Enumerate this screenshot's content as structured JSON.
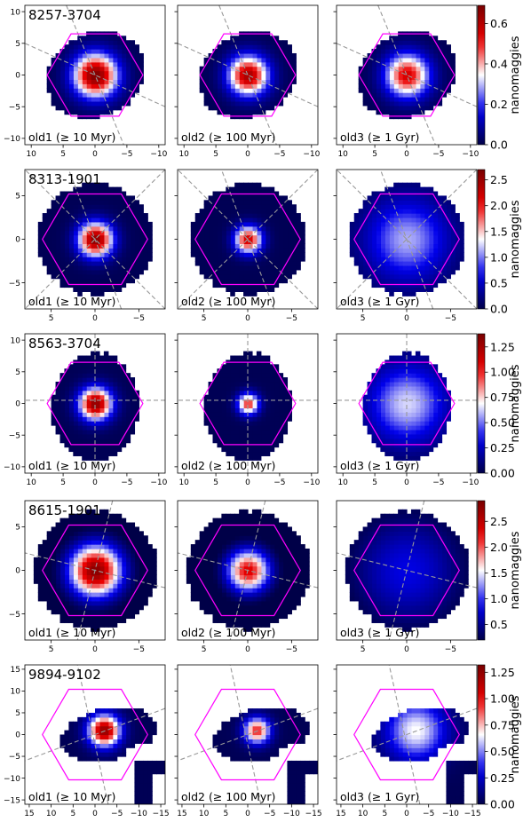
{
  "figure": {
    "rows": [
      {
        "galaxy": "8257-3704",
        "panels": [
          {
            "label": "old1 (≥ 10 Myr)",
            "peak": 0.68
          },
          {
            "label": "old2 (≥ 100 Myr)",
            "peak": 0.62
          },
          {
            "label": "old3 (≥ 1 Gyr)",
            "peak": 0.55
          }
        ],
        "ytick_labels": [
          "10",
          "5",
          "0",
          "−5",
          "−10"
        ],
        "ytick_values": [
          10,
          5,
          0,
          -5,
          -10
        ],
        "xtick_labels": [
          "10",
          "5",
          "0",
          "−5",
          "−10"
        ],
        "xtick_values": [
          10,
          5,
          0,
          -5,
          -10
        ],
        "axis_range": [
          -11,
          11
        ],
        "hexagon_radius": 7.5,
        "colorbar": {
          "label": "nanomaggies",
          "ticks": [
            "0.0",
            "0.2",
            "0.4",
            "0.6"
          ],
          "tick_values": [
            0.0,
            0.2,
            0.4,
            0.6
          ],
          "range": [
            0,
            0.69
          ]
        }
      },
      {
        "galaxy": "8313-1901",
        "panels": [
          {
            "label": "old1 (≥ 10 Myr)",
            "peak": 2.6
          },
          {
            "label": "old2 (≥ 100 Myr)",
            "peak": 2.2
          },
          {
            "label": "old3 (≥ 1 Gyr)",
            "peak": 1.1
          }
        ],
        "ytick_labels": [
          "5",
          "0",
          "−5"
        ],
        "ytick_values": [
          5,
          0,
          -5
        ],
        "xtick_labels": [
          "5",
          "0",
          "−5"
        ],
        "xtick_values": [
          5,
          0,
          -5
        ],
        "axis_range": [
          -8,
          8
        ],
        "hexagon_radius": 6,
        "colorbar": {
          "label": "nanomaggies",
          "ticks": [
            "0.0",
            "0.5",
            "1.0",
            "1.5",
            "2.0",
            "2.5"
          ],
          "tick_values": [
            0,
            0.5,
            1.0,
            1.5,
            2.0,
            2.5
          ],
          "range": [
            0,
            2.7
          ]
        }
      },
      {
        "galaxy": "8563-3704",
        "panels": [
          {
            "label": "old1 (≥ 10 Myr)",
            "peak": 1.32
          },
          {
            "label": "old2 (≥ 100 Myr)",
            "peak": 1.0
          },
          {
            "label": "old3 (≥ 1 Gyr)",
            "peak": 0.62
          }
        ],
        "ytick_labels": [
          "10",
          "5",
          "0",
          "−5",
          "−10"
        ],
        "ytick_values": [
          10,
          5,
          0,
          -5,
          -10
        ],
        "xtick_labels": [
          "10",
          "5",
          "0",
          "−5",
          "−10"
        ],
        "xtick_values": [
          10,
          5,
          0,
          -5,
          -10
        ],
        "axis_range": [
          -11,
          11
        ],
        "hexagon_radius": 7.5,
        "colorbar": {
          "label": "nanomaggies",
          "ticks": [
            "0.00",
            "0.25",
            "0.50",
            "0.75",
            "1.00",
            "1.25"
          ],
          "tick_values": [
            0,
            0.25,
            0.5,
            0.75,
            1.0,
            1.25
          ],
          "range": [
            0,
            1.38
          ]
        }
      },
      {
        "galaxy": "8615-1901",
        "panels": [
          {
            "label": "old1 (≥ 10 Myr)",
            "peak": 2.8
          },
          {
            "label": "old2 (≥ 100 Myr)",
            "peak": 2.3
          },
          {
            "label": "old3 (≥ 1 Gyr)",
            "peak": 0.8
          }
        ],
        "ytick_labels": [
          "5",
          "0",
          "−5"
        ],
        "ytick_values": [
          5,
          0,
          -5
        ],
        "xtick_labels": [
          "5",
          "0",
          "−5"
        ],
        "xtick_values": [
          5,
          0,
          -5
        ],
        "axis_range": [
          -8,
          8
        ],
        "hexagon_radius": 6,
        "colorbar": {
          "label": "nanomaggies",
          "ticks": [
            "0.5",
            "1.0",
            "1.5",
            "2.0",
            "2.5"
          ],
          "tick_values": [
            0.5,
            1.0,
            1.5,
            2.0,
            2.5
          ],
          "range": [
            0.2,
            2.9
          ]
        }
      },
      {
        "galaxy": "9894-9102",
        "panels": [
          {
            "label": "old1 (≥ 10 Myr)",
            "peak": 1.25
          },
          {
            "label": "old2 (≥ 100 Myr)",
            "peak": 0.95
          },
          {
            "label": "old3 (≥ 1 Gyr)",
            "peak": 0.65
          }
        ],
        "ytick_labels": [
          "15",
          "10",
          "5",
          "0",
          "−5",
          "−10",
          "−15"
        ],
        "ytick_values": [
          15,
          10,
          5,
          0,
          -5,
          -10,
          -15
        ],
        "xtick_labels": [
          "15",
          "10",
          "5",
          "0",
          "−5",
          "−10",
          "−15"
        ],
        "xtick_values": [
          15,
          10,
          5,
          0,
          -5,
          -10,
          -15
        ],
        "axis_range": [
          -16,
          16
        ],
        "hexagon_radius": 12,
        "colorbar": {
          "label": "nanomaggies",
          "ticks": [
            "0.00",
            "0.25",
            "0.50",
            "0.75",
            "1.00",
            "1.25"
          ],
          "tick_values": [
            0,
            0.25,
            0.5,
            0.75,
            1.0,
            1.25
          ],
          "range": [
            0,
            1.32
          ]
        }
      }
    ]
  },
  "colors": {
    "hexagon": "#ff00ff",
    "guide_lines": "#999999",
    "cmap_low": "#00008b",
    "cmap_mid": "#ffffff",
    "cmap_high": "#8b0000"
  },
  "chart_data": {
    "type": "heatmap",
    "colormap": "seismic-like (dark blue → white → dark red)",
    "xlabel": "",
    "ylabel": "",
    "colorbar_label": "nanomaggies",
    "grid": false,
    "rows": [
      {
        "galaxy": "8257-3704",
        "panels": [
          "old1 (≥ 10 Myr)",
          "old2 (≥ 100 Myr)",
          "old3 (≥ 1 Gyr)"
        ],
        "peak_values": [
          0.68,
          0.62,
          0.55
        ],
        "colorbar_range": [
          0,
          0.69
        ],
        "axis_range": [
          -11,
          11
        ]
      },
      {
        "galaxy": "8313-1901",
        "panels": [
          "old1 (≥ 10 Myr)",
          "old2 (≥ 100 Myr)",
          "old3 (≥ 1 Gyr)"
        ],
        "peak_values": [
          2.6,
          2.2,
          1.1
        ],
        "colorbar_range": [
          0,
          2.7
        ],
        "axis_range": [
          -8,
          8
        ]
      },
      {
        "galaxy": "8563-3704",
        "panels": [
          "old1 (≥ 10 Myr)",
          "old2 (≥ 100 Myr)",
          "old3 (≥ 1 Gyr)"
        ],
        "peak_values": [
          1.32,
          1.0,
          0.62
        ],
        "colorbar_range": [
          0,
          1.38
        ],
        "axis_range": [
          -11,
          11
        ]
      },
      {
        "galaxy": "8615-1901",
        "panels": [
          "old1 (≥ 10 Myr)",
          "old2 (≥ 100 Myr)",
          "old3 (≥ 1 Gyr)"
        ],
        "peak_values": [
          2.8,
          2.3,
          0.8
        ],
        "colorbar_range": [
          0.2,
          2.9
        ],
        "axis_range": [
          -8,
          8
        ]
      },
      {
        "galaxy": "9894-9102",
        "panels": [
          "old1 (≥ 10 Myr)",
          "old2 (≥ 100 Myr)",
          "old3 (≥ 1 Gyr)"
        ],
        "peak_values": [
          1.25,
          0.95,
          0.65
        ],
        "colorbar_range": [
          0,
          1.32
        ],
        "axis_range": [
          -16,
          16
        ]
      }
    ]
  }
}
